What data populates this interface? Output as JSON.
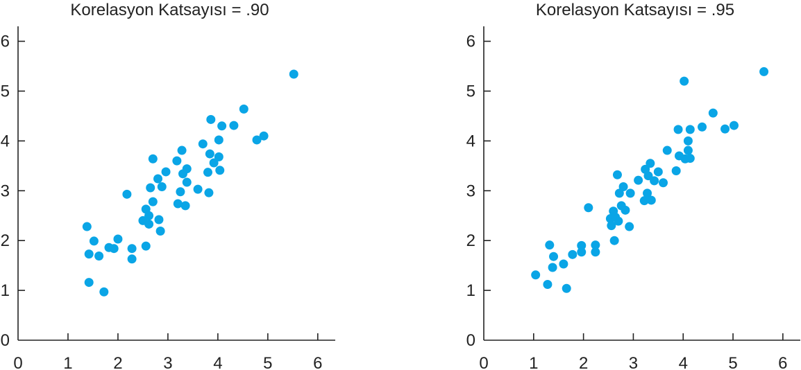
{
  "chart_data": [
    {
      "type": "scatter",
      "title": "Korelasyon Katsayısı = .90",
      "xlabel": "",
      "ylabel": "",
      "xlim": [
        0,
        6.35
      ],
      "ylim": [
        0,
        6.3
      ],
      "x_ticks": [
        0,
        1,
        2,
        3,
        4,
        5,
        6
      ],
      "y_ticks": [
        0,
        1,
        2,
        3,
        4,
        5,
        6
      ],
      "x_tick_labels": [
        "0",
        "1",
        "2",
        "3",
        "4",
        "5",
        "6"
      ],
      "y_tick_labels": [
        "0",
        "1",
        "2",
        "3",
        "4",
        "5",
        "6"
      ],
      "grid": false,
      "marker_color": "#0aa5e6",
      "points": [
        [
          1.38,
          2.28
        ],
        [
          1.42,
          1.73
        ],
        [
          1.52,
          1.99
        ],
        [
          1.62,
          1.69
        ],
        [
          1.42,
          1.16
        ],
        [
          1.72,
          0.97
        ],
        [
          1.82,
          1.86
        ],
        [
          1.92,
          1.84
        ],
        [
          2.0,
          2.03
        ],
        [
          2.18,
          2.93
        ],
        [
          2.28,
          1.84
        ],
        [
          2.28,
          1.63
        ],
        [
          2.5,
          2.4
        ],
        [
          2.56,
          2.63
        ],
        [
          2.56,
          1.89
        ],
        [
          2.62,
          2.5
        ],
        [
          2.62,
          2.33
        ],
        [
          2.65,
          3.06
        ],
        [
          2.7,
          3.64
        ],
        [
          2.7,
          2.78
        ],
        [
          2.8,
          3.24
        ],
        [
          2.82,
          2.42
        ],
        [
          2.85,
          2.19
        ],
        [
          2.88,
          3.08
        ],
        [
          2.96,
          3.38
        ],
        [
          3.18,
          3.6
        ],
        [
          3.2,
          2.74
        ],
        [
          3.25,
          2.98
        ],
        [
          3.28,
          3.81
        ],
        [
          3.3,
          3.34
        ],
        [
          3.35,
          2.7
        ],
        [
          3.38,
          3.44
        ],
        [
          3.38,
          3.17
        ],
        [
          3.6,
          3.03
        ],
        [
          3.7,
          3.94
        ],
        [
          3.8,
          3.37
        ],
        [
          3.82,
          2.96
        ],
        [
          3.84,
          3.74
        ],
        [
          3.86,
          4.43
        ],
        [
          3.92,
          3.56
        ],
        [
          4.02,
          4.02
        ],
        [
          4.02,
          3.68
        ],
        [
          4.04,
          3.41
        ],
        [
          4.08,
          4.3
        ],
        [
          4.32,
          4.31
        ],
        [
          4.52,
          4.64
        ],
        [
          4.78,
          4.02
        ],
        [
          4.92,
          4.1
        ],
        [
          5.52,
          5.34
        ]
      ]
    },
    {
      "type": "scatter",
      "title": "Korelasyon Katsayısı = .95",
      "xlabel": "",
      "ylabel": "",
      "xlim": [
        0,
        6.35
      ],
      "ylim": [
        0,
        6.3
      ],
      "x_ticks": [
        0,
        1,
        2,
        3,
        4,
        5,
        6
      ],
      "y_ticks": [
        0,
        1,
        2,
        3,
        4,
        5,
        6
      ],
      "x_tick_labels": [
        "0",
        "1",
        "2",
        "3",
        "4",
        "5",
        "6"
      ],
      "y_tick_labels": [
        "0",
        "1",
        "2",
        "3",
        "4",
        "5",
        "6"
      ],
      "grid": false,
      "marker_color": "#0aa5e6",
      "points": [
        [
          1.04,
          1.31
        ],
        [
          1.28,
          1.12
        ],
        [
          1.32,
          1.91
        ],
        [
          1.38,
          1.46
        ],
        [
          1.4,
          1.68
        ],
        [
          1.6,
          1.53
        ],
        [
          1.66,
          1.04
        ],
        [
          1.78,
          1.72
        ],
        [
          1.96,
          1.9
        ],
        [
          1.96,
          1.77
        ],
        [
          2.1,
          2.66
        ],
        [
          2.24,
          1.91
        ],
        [
          2.24,
          1.77
        ],
        [
          2.54,
          2.44
        ],
        [
          2.56,
          2.3
        ],
        [
          2.6,
          2.59
        ],
        [
          2.62,
          2.0
        ],
        [
          2.64,
          2.47
        ],
        [
          2.68,
          3.32
        ],
        [
          2.7,
          2.39
        ],
        [
          2.72,
          2.95
        ],
        [
          2.76,
          2.7
        ],
        [
          2.8,
          3.08
        ],
        [
          2.84,
          2.61
        ],
        [
          2.92,
          2.28
        ],
        [
          2.94,
          2.95
        ],
        [
          3.1,
          3.21
        ],
        [
          3.22,
          2.8
        ],
        [
          3.24,
          3.43
        ],
        [
          3.28,
          2.95
        ],
        [
          3.3,
          3.3
        ],
        [
          3.34,
          3.55
        ],
        [
          3.36,
          2.81
        ],
        [
          3.42,
          3.2
        ],
        [
          3.5,
          3.38
        ],
        [
          3.6,
          3.16
        ],
        [
          3.68,
          3.81
        ],
        [
          3.86,
          3.4
        ],
        [
          3.9,
          4.23
        ],
        [
          3.92,
          3.7
        ],
        [
          4.02,
          5.2
        ],
        [
          4.04,
          3.64
        ],
        [
          4.1,
          4.0
        ],
        [
          4.1,
          3.81
        ],
        [
          4.14,
          4.23
        ],
        [
          4.14,
          3.65
        ],
        [
          4.38,
          4.28
        ],
        [
          4.6,
          4.56
        ],
        [
          4.84,
          4.24
        ],
        [
          5.02,
          4.31
        ],
        [
          5.62,
          5.39
        ]
      ]
    }
  ]
}
